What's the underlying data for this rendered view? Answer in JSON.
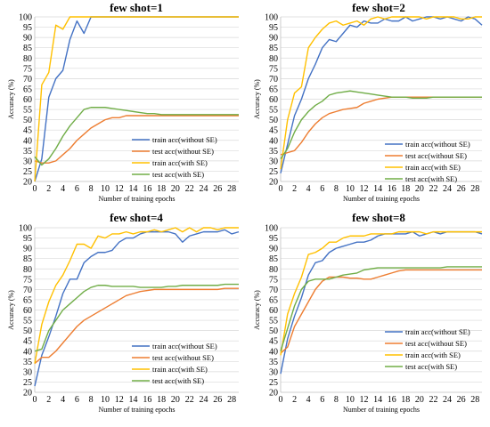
{
  "chart_data": [
    {
      "type": "line",
      "title": "few shot=1",
      "xlabel": "Number of training epochs",
      "ylabel": "Accuracy (%)",
      "ylim": [
        20,
        100
      ],
      "yticks": [
        20,
        25,
        30,
        35,
        40,
        45,
        50,
        55,
        60,
        65,
        70,
        75,
        80,
        85,
        90,
        95,
        100
      ],
      "xlim": [
        0,
        29
      ],
      "xticks": [
        0,
        2,
        4,
        6,
        8,
        10,
        12,
        14,
        16,
        18,
        20,
        22,
        24,
        26,
        28
      ],
      "grid": true,
      "legend_position": "bottom-right",
      "x": [
        0,
        1,
        2,
        3,
        4,
        5,
        6,
        7,
        8,
        9,
        10,
        11,
        12,
        13,
        14,
        15,
        16,
        17,
        18,
        19,
        20,
        21,
        22,
        23,
        24,
        25,
        26,
        27,
        28,
        29
      ],
      "series": [
        {
          "name": "train acc(without SE)",
          "color": "#4472c4",
          "values": [
            20,
            31,
            61,
            70,
            74,
            89,
            98,
            92,
            100,
            100,
            100,
            100,
            100,
            100,
            100,
            100,
            100,
            100,
            100,
            100,
            100,
            100,
            100,
            100,
            100,
            100,
            100,
            100,
            100,
            100
          ]
        },
        {
          "name": "test acc(without SE)",
          "color": "#ed7d31",
          "values": [
            30,
            29,
            29,
            30,
            33,
            36,
            40,
            43,
            46,
            48,
            50,
            51,
            51,
            52,
            52,
            52,
            52,
            52,
            52,
            52,
            52,
            52,
            52,
            52,
            52,
            52,
            52,
            52,
            52,
            52
          ]
        },
        {
          "name": "train acc(with SE)",
          "color": "#ffc000",
          "values": [
            20,
            67,
            73,
            96,
            94,
            100,
            100,
            100,
            100,
            100,
            100,
            100,
            100,
            100,
            100,
            100,
            100,
            100,
            100,
            100,
            100,
            100,
            100,
            100,
            100,
            100,
            100,
            100,
            100,
            100
          ]
        },
        {
          "name": "test acc(with SE)",
          "color": "#70ad47",
          "values": [
            32,
            28,
            31,
            36,
            42,
            47,
            51,
            55,
            56,
            56,
            56,
            55.5,
            55,
            54.5,
            54,
            53.5,
            53,
            53,
            52.5,
            52.5,
            52.5,
            52.5,
            52.5,
            52.5,
            52.5,
            52.5,
            52.5,
            52.5,
            52.5,
            52.5
          ]
        }
      ]
    },
    {
      "type": "line",
      "title": "few shot=2",
      "xlabel": "Number of training epochs",
      "ylabel": "Accuracy (%)",
      "ylim": [
        20,
        100
      ],
      "yticks": [
        20,
        25,
        30,
        35,
        40,
        45,
        50,
        55,
        60,
        65,
        70,
        75,
        80,
        85,
        90,
        95,
        100
      ],
      "xlim": [
        0,
        29
      ],
      "xticks": [
        0,
        2,
        4,
        6,
        8,
        10,
        12,
        14,
        16,
        18,
        20,
        22,
        24,
        26,
        28
      ],
      "grid": true,
      "legend_position": "bottom-right",
      "x": [
        0,
        1,
        2,
        3,
        4,
        5,
        6,
        7,
        8,
        9,
        10,
        11,
        12,
        13,
        14,
        15,
        16,
        17,
        18,
        19,
        20,
        21,
        22,
        23,
        24,
        25,
        26,
        27,
        28,
        29
      ],
      "series": [
        {
          "name": "train acc(without SE)",
          "color": "#4472c4",
          "values": [
            24,
            38,
            52,
            60,
            70,
            77,
            85,
            89,
            88,
            92,
            96,
            95,
            98,
            97,
            97,
            99,
            98,
            98,
            100,
            98,
            99,
            100,
            100,
            99,
            100,
            99,
            98,
            100,
            99,
            96
          ]
        },
        {
          "name": "test acc(without SE)",
          "color": "#ed7d31",
          "values": [
            33,
            34,
            35,
            39,
            44,
            48,
            51,
            53,
            54,
            55,
            55.5,
            56,
            58,
            59,
            60,
            60.5,
            61,
            61,
            61,
            61,
            61,
            61,
            61,
            61,
            61,
            61,
            61,
            61,
            61,
            61
          ]
        },
        {
          "name": "train acc(with SE)",
          "color": "#ffc000",
          "values": [
            26,
            50,
            63,
            66,
            85,
            90,
            94,
            97,
            98,
            96,
            97,
            98,
            96,
            99,
            100,
            99,
            100,
            100,
            100,
            100,
            100,
            99,
            100,
            100,
            100,
            100,
            99,
            99,
            100,
            100
          ]
        },
        {
          "name": "test acc(with SE)",
          "color": "#70ad47",
          "values": [
            31,
            36,
            44,
            50,
            54,
            57,
            59,
            62,
            63,
            63.5,
            64,
            63.5,
            63,
            62.5,
            62,
            61.5,
            61,
            61,
            61,
            60.5,
            60.5,
            60.5,
            61,
            61,
            61,
            61,
            61,
            61,
            61,
            61
          ]
        }
      ]
    },
    {
      "type": "line",
      "title": "few shot=4",
      "xlabel": "Number of training epochs",
      "ylabel": "Accuracy (%)",
      "ylim": [
        20,
        100
      ],
      "yticks": [
        20,
        25,
        30,
        35,
        40,
        45,
        50,
        55,
        60,
        65,
        70,
        75,
        80,
        85,
        90,
        95,
        100
      ],
      "xlim": [
        0,
        29
      ],
      "xticks": [
        0,
        2,
        4,
        6,
        8,
        10,
        12,
        14,
        16,
        18,
        20,
        22,
        24,
        26,
        28
      ],
      "grid": true,
      "legend_position": "bottom-right",
      "x": [
        0,
        1,
        2,
        3,
        4,
        5,
        6,
        7,
        8,
        9,
        10,
        11,
        12,
        13,
        14,
        15,
        16,
        17,
        18,
        19,
        20,
        21,
        22,
        23,
        24,
        25,
        26,
        27,
        28,
        29
      ],
      "series": [
        {
          "name": "train acc(without SE)",
          "color": "#4472c4",
          "values": [
            23,
            38,
            47,
            57,
            68,
            75,
            75,
            83,
            86,
            88,
            88,
            89,
            93,
            95,
            95,
            97,
            98,
            98,
            98,
            98,
            97,
            93,
            96,
            97,
            98,
            98,
            98,
            99,
            97,
            98
          ]
        },
        {
          "name": "test acc(without SE)",
          "color": "#ed7d31",
          "values": [
            34,
            37,
            37,
            40,
            44,
            48,
            52,
            55,
            57,
            59,
            61,
            63,
            65,
            67,
            68,
            69,
            69.5,
            70,
            70,
            70,
            70,
            70,
            70,
            70,
            70,
            70,
            70,
            70.5,
            70.5,
            70.5
          ]
        },
        {
          "name": "train acc(with SE)",
          "color": "#ffc000",
          "values": [
            34,
            53,
            64,
            72,
            77,
            84,
            92,
            92,
            90,
            96,
            95,
            97,
            97,
            98,
            97,
            98,
            98,
            99,
            98,
            99,
            100,
            98,
            100,
            98,
            100,
            100,
            99,
            100,
            100,
            100
          ]
        },
        {
          "name": "test acc(with SE)",
          "color": "#70ad47",
          "values": [
            40,
            41,
            50,
            55,
            60,
            63,
            66,
            69,
            71,
            72,
            72,
            71.5,
            71.5,
            71.5,
            71.5,
            71,
            71,
            71,
            71,
            71.5,
            71.5,
            72,
            72,
            72,
            72,
            72,
            72,
            72.5,
            72.5,
            72.5
          ]
        }
      ]
    },
    {
      "type": "line",
      "title": "few shot=8",
      "xlabel": "Number of training epochs",
      "ylabel": "Accuracy (%)",
      "ylim": [
        20,
        100
      ],
      "yticks": [
        20,
        25,
        30,
        35,
        40,
        45,
        50,
        55,
        60,
        65,
        70,
        75,
        80,
        85,
        90,
        95,
        100
      ],
      "xlim": [
        0,
        29
      ],
      "xticks": [
        0,
        2,
        4,
        6,
        8,
        10,
        12,
        14,
        16,
        18,
        20,
        22,
        24,
        26,
        28
      ],
      "grid": true,
      "legend_position": "bottom-right",
      "x": [
        0,
        1,
        2,
        3,
        4,
        5,
        6,
        7,
        8,
        9,
        10,
        11,
        12,
        13,
        14,
        15,
        16,
        17,
        18,
        19,
        20,
        21,
        22,
        23,
        24,
        25,
        26,
        27,
        28,
        29
      ],
      "series": [
        {
          "name": "train acc(without SE)",
          "color": "#4472c4",
          "values": [
            29,
            46,
            57,
            66,
            77,
            83,
            84,
            88,
            90,
            91,
            92,
            93,
            93,
            94,
            96,
            97,
            97,
            97,
            97,
            98,
            96,
            97,
            98,
            97,
            98,
            98,
            98,
            98,
            98,
            97
          ]
        },
        {
          "name": "test acc(without SE)",
          "color": "#ed7d31",
          "values": [
            39,
            42,
            52,
            58,
            64,
            70,
            74,
            76,
            76,
            76,
            75.5,
            75.5,
            75,
            75,
            76,
            77,
            78,
            79,
            79.5,
            79.5,
            79.5,
            79.5,
            79.5,
            79.5,
            79.5,
            79.5,
            79.5,
            79.5,
            79.5,
            79.5
          ]
        },
        {
          "name": "train acc(with SE)",
          "color": "#ffc000",
          "values": [
            38,
            58,
            68,
            76,
            87,
            88,
            90,
            93,
            93,
            95,
            96,
            96,
            96,
            97,
            97,
            97,
            97,
            98,
            98,
            98,
            98,
            97,
            98,
            98,
            98,
            98,
            98,
            98,
            98,
            98
          ]
        },
        {
          "name": "test acc(with SE)",
          "color": "#70ad47",
          "values": [
            40,
            51,
            62,
            70,
            74,
            75,
            75,
            75,
            76,
            77,
            77.5,
            78,
            79.5,
            80,
            80.5,
            80.5,
            80.5,
            80.5,
            80.5,
            80.5,
            80.5,
            80.5,
            80.5,
            80.5,
            81,
            81,
            81,
            81,
            81,
            81
          ]
        }
      ]
    }
  ]
}
